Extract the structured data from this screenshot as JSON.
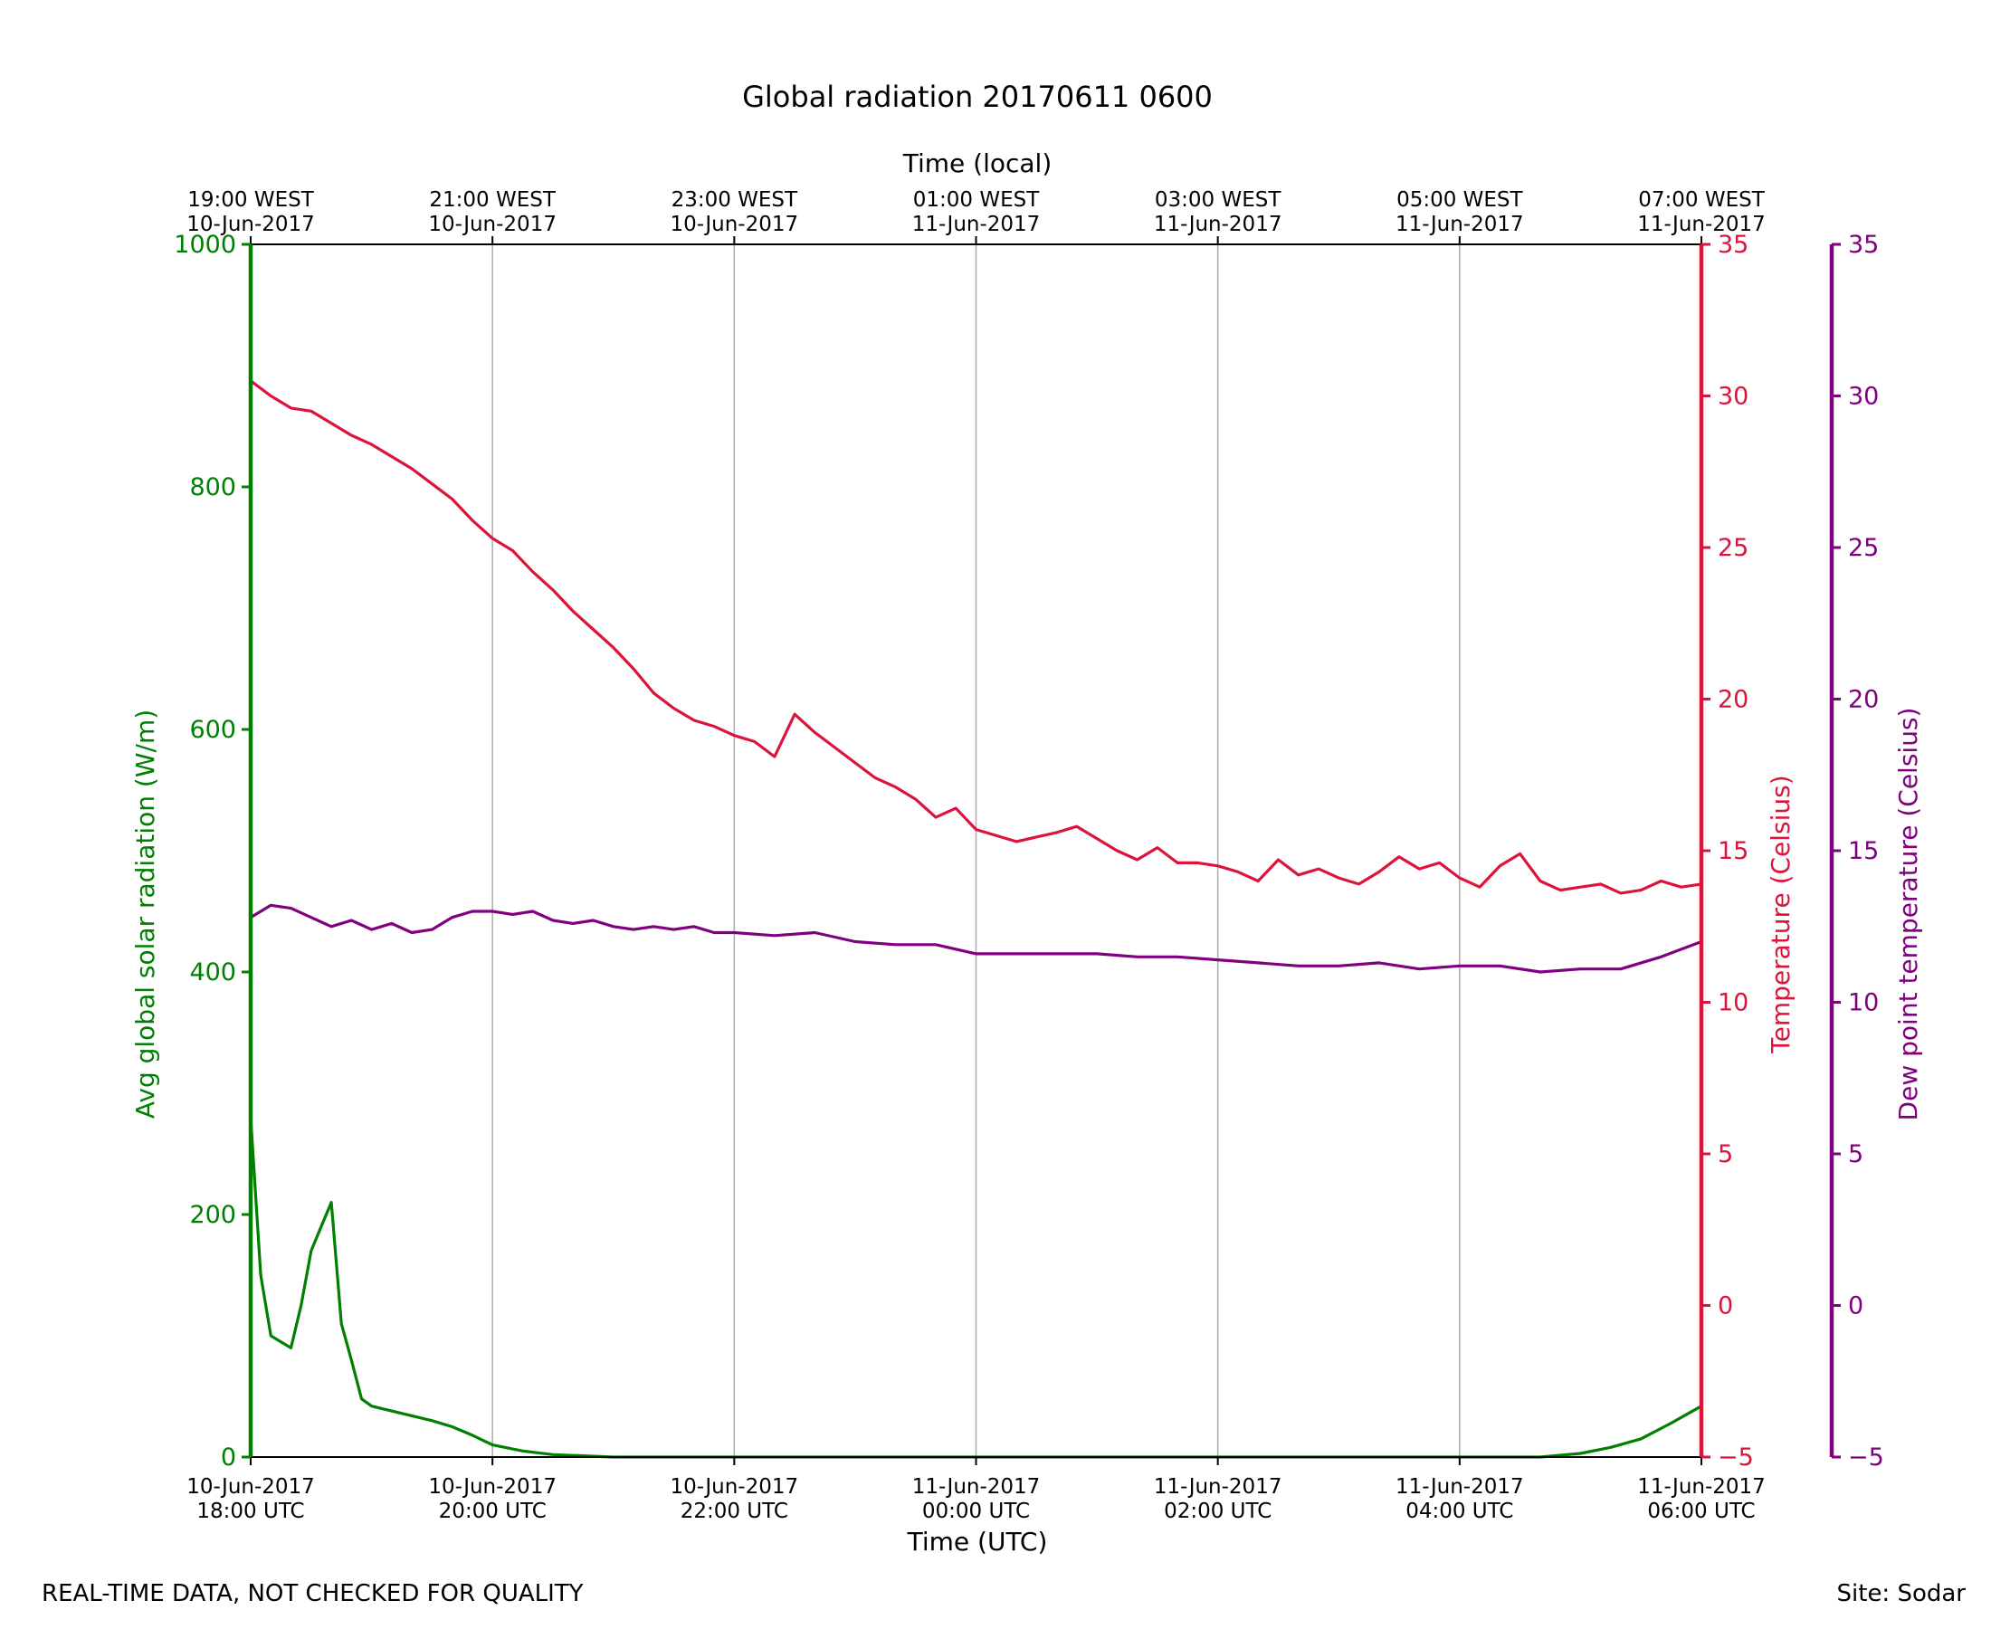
{
  "chart_data": {
    "type": "line",
    "title": "Global radiation 20170611 0600",
    "xlabel": "Time (UTC)",
    "x2label": "Time (local)",
    "x_range": [
      "2017-06-10T18:00Z",
      "2017-06-11T06:00Z"
    ],
    "x_ticks": [
      {
        "time": "2017-06-10T18:00Z",
        "utc_date": "10-Jun-2017",
        "utc_time": "18:00 UTC",
        "local_time": "19:00 WEST",
        "local_date": "10-Jun-2017"
      },
      {
        "time": "2017-06-10T20:00Z",
        "utc_date": "10-Jun-2017",
        "utc_time": "20:00 UTC",
        "local_time": "21:00 WEST",
        "local_date": "10-Jun-2017"
      },
      {
        "time": "2017-06-10T22:00Z",
        "utc_date": "10-Jun-2017",
        "utc_time": "22:00 UTC",
        "local_time": "23:00 WEST",
        "local_date": "10-Jun-2017"
      },
      {
        "time": "2017-06-11T00:00Z",
        "utc_date": "11-Jun-2017",
        "utc_time": "00:00 UTC",
        "local_time": "01:00 WEST",
        "local_date": "11-Jun-2017"
      },
      {
        "time": "2017-06-11T02:00Z",
        "utc_date": "11-Jun-2017",
        "utc_time": "02:00 UTC",
        "local_time": "03:00 WEST",
        "local_date": "11-Jun-2017"
      },
      {
        "time": "2017-06-11T04:00Z",
        "utc_date": "11-Jun-2017",
        "utc_time": "04:00 UTC",
        "local_time": "05:00 WEST",
        "local_date": "11-Jun-2017"
      },
      {
        "time": "2017-06-11T06:00Z",
        "utc_date": "11-Jun-2017",
        "utc_time": "06:00 UTC",
        "local_time": "07:00 WEST",
        "local_date": "11-Jun-2017"
      }
    ],
    "grid": "vertical",
    "axes": [
      {
        "id": "radiation",
        "label": "Avg global solar radiation (W/m)",
        "side": "left",
        "color": "#008000",
        "ylim": [
          0,
          1000
        ],
        "ticks": [
          0,
          200,
          400,
          600,
          800,
          1000
        ]
      },
      {
        "id": "temperature",
        "label": "Temperature (Celsius)",
        "side": "right",
        "color": "#dc143c",
        "ylim": [
          -5,
          35
        ],
        "ticks": [
          -5,
          0,
          5,
          10,
          15,
          20,
          25,
          30,
          35
        ]
      },
      {
        "id": "dewpoint",
        "label": "Dew point temperature (Celsius)",
        "side": "right-outer",
        "color": "#800080",
        "ylim": [
          -5,
          35
        ],
        "ticks": [
          -5,
          0,
          5,
          10,
          15,
          20,
          25,
          30,
          35
        ]
      }
    ],
    "series": [
      {
        "axis": "radiation",
        "color": "#008000",
        "x": [
          "2017-06-10T18:00Z",
          "2017-06-10T18:05Z",
          "2017-06-10T18:10Z",
          "2017-06-10T18:15Z",
          "2017-06-10T18:20Z",
          "2017-06-10T18:25Z",
          "2017-06-10T18:30Z",
          "2017-06-10T18:35Z",
          "2017-06-10T18:40Z",
          "2017-06-10T18:45Z",
          "2017-06-10T18:50Z",
          "2017-06-10T18:55Z",
          "2017-06-10T19:00Z",
          "2017-06-10T19:05Z",
          "2017-06-10T19:10Z",
          "2017-06-10T19:20Z",
          "2017-06-10T19:30Z",
          "2017-06-10T19:40Z",
          "2017-06-10T19:50Z",
          "2017-06-10T20:00Z",
          "2017-06-10T20:15Z",
          "2017-06-10T20:30Z",
          "2017-06-10T21:00Z",
          "2017-06-10T22:00Z",
          "2017-06-11T00:00Z",
          "2017-06-11T02:00Z",
          "2017-06-11T04:00Z",
          "2017-06-11T04:40Z",
          "2017-06-11T05:00Z",
          "2017-06-11T05:15Z",
          "2017-06-11T05:30Z",
          "2017-06-11T05:45Z",
          "2017-06-11T06:00Z"
        ],
        "values": [
          280,
          150,
          100,
          95,
          90,
          125,
          170,
          190,
          210,
          110,
          80,
          48,
          42,
          40,
          38,
          34,
          30,
          25,
          18,
          10,
          5,
          2,
          0,
          0,
          0,
          0,
          0,
          0,
          3,
          8,
          15,
          28,
          42
        ]
      },
      {
        "axis": "temperature",
        "color": "#dc143c",
        "x": [
          "2017-06-10T18:00Z",
          "2017-06-10T18:10Z",
          "2017-06-10T18:20Z",
          "2017-06-10T18:30Z",
          "2017-06-10T18:40Z",
          "2017-06-10T18:50Z",
          "2017-06-10T19:00Z",
          "2017-06-10T19:10Z",
          "2017-06-10T19:20Z",
          "2017-06-10T19:30Z",
          "2017-06-10T19:40Z",
          "2017-06-10T19:50Z",
          "2017-06-10T20:00Z",
          "2017-06-10T20:10Z",
          "2017-06-10T20:20Z",
          "2017-06-10T20:30Z",
          "2017-06-10T20:40Z",
          "2017-06-10T20:50Z",
          "2017-06-10T21:00Z",
          "2017-06-10T21:10Z",
          "2017-06-10T21:20Z",
          "2017-06-10T21:30Z",
          "2017-06-10T21:40Z",
          "2017-06-10T21:50Z",
          "2017-06-10T22:00Z",
          "2017-06-10T22:10Z",
          "2017-06-10T22:20Z",
          "2017-06-10T22:30Z",
          "2017-06-10T22:40Z",
          "2017-06-10T22:50Z",
          "2017-06-10T23:00Z",
          "2017-06-10T23:10Z",
          "2017-06-10T23:20Z",
          "2017-06-10T23:30Z",
          "2017-06-10T23:40Z",
          "2017-06-10T23:50Z",
          "2017-06-11T00:00Z",
          "2017-06-11T00:20Z",
          "2017-06-11T00:40Z",
          "2017-06-11T00:50Z",
          "2017-06-11T01:00Z",
          "2017-06-11T01:10Z",
          "2017-06-11T01:20Z",
          "2017-06-11T01:30Z",
          "2017-06-11T01:40Z",
          "2017-06-11T01:50Z",
          "2017-06-11T02:00Z",
          "2017-06-11T02:10Z",
          "2017-06-11T02:20Z",
          "2017-06-11T02:30Z",
          "2017-06-11T02:40Z",
          "2017-06-11T02:50Z",
          "2017-06-11T03:00Z",
          "2017-06-11T03:10Z",
          "2017-06-11T03:20Z",
          "2017-06-11T03:30Z",
          "2017-06-11T03:40Z",
          "2017-06-11T03:50Z",
          "2017-06-11T04:00Z",
          "2017-06-11T04:10Z",
          "2017-06-11T04:20Z",
          "2017-06-11T04:30Z",
          "2017-06-11T04:40Z",
          "2017-06-11T04:50Z",
          "2017-06-11T05:00Z",
          "2017-06-11T05:10Z",
          "2017-06-11T05:20Z",
          "2017-06-11T05:30Z",
          "2017-06-11T05:40Z",
          "2017-06-11T05:50Z",
          "2017-06-11T06:00Z"
        ],
        "values": [
          30.5,
          30,
          29.6,
          29.5,
          29.1,
          28.7,
          28.4,
          28,
          27.6,
          27.1,
          26.6,
          25.9,
          25.3,
          24.9,
          24.2,
          23.6,
          22.9,
          22.3,
          21.7,
          21.0,
          20.2,
          19.7,
          19.3,
          19.1,
          18.8,
          18.6,
          18.1,
          19.5,
          18.9,
          18.4,
          17.9,
          17.4,
          17.1,
          16.7,
          16.1,
          16.4,
          15.7,
          15.3,
          15.6,
          15.8,
          15.4,
          15.0,
          14.7,
          15.1,
          14.6,
          14.6,
          14.5,
          14.3,
          14.0,
          14.7,
          14.2,
          14.4,
          14.1,
          13.9,
          14.3,
          14.8,
          14.4,
          14.6,
          14.1,
          13.8,
          14.5,
          14.9,
          14.0,
          13.7,
          13.8,
          13.9,
          13.6,
          13.7,
          14.0,
          13.8,
          13.9
        ]
      },
      {
        "axis": "dewpoint",
        "color": "#800080",
        "x": [
          "2017-06-10T18:00Z",
          "2017-06-10T18:10Z",
          "2017-06-10T18:20Z",
          "2017-06-10T18:30Z",
          "2017-06-10T18:40Z",
          "2017-06-10T18:50Z",
          "2017-06-10T19:00Z",
          "2017-06-10T19:10Z",
          "2017-06-10T19:20Z",
          "2017-06-10T19:30Z",
          "2017-06-10T19:40Z",
          "2017-06-10T19:50Z",
          "2017-06-10T20:00Z",
          "2017-06-10T20:10Z",
          "2017-06-10T20:20Z",
          "2017-06-10T20:30Z",
          "2017-06-10T20:40Z",
          "2017-06-10T20:50Z",
          "2017-06-10T21:00Z",
          "2017-06-10T21:10Z",
          "2017-06-10T21:20Z",
          "2017-06-10T21:30Z",
          "2017-06-10T21:40Z",
          "2017-06-10T21:50Z",
          "2017-06-10T22:00Z",
          "2017-06-10T22:20Z",
          "2017-06-10T22:40Z",
          "2017-06-10T23:00Z",
          "2017-06-10T23:20Z",
          "2017-06-10T23:40Z",
          "2017-06-11T00:00Z",
          "2017-06-11T00:20Z",
          "2017-06-11T00:40Z",
          "2017-06-11T01:00Z",
          "2017-06-11T01:20Z",
          "2017-06-11T01:40Z",
          "2017-06-11T02:00Z",
          "2017-06-11T02:20Z",
          "2017-06-11T02:40Z",
          "2017-06-11T03:00Z",
          "2017-06-11T03:20Z",
          "2017-06-11T03:40Z",
          "2017-06-11T04:00Z",
          "2017-06-11T04:20Z",
          "2017-06-11T04:40Z",
          "2017-06-11T05:00Z",
          "2017-06-11T05:20Z",
          "2017-06-11T05:40Z",
          "2017-06-11T06:00Z"
        ],
        "values": [
          12.8,
          13.2,
          13.1,
          12.8,
          12.5,
          12.7,
          12.4,
          12.6,
          12.3,
          12.4,
          12.8,
          13.0,
          13.0,
          12.9,
          13.0,
          12.7,
          12.6,
          12.7,
          12.5,
          12.4,
          12.5,
          12.4,
          12.5,
          12.3,
          12.3,
          12.2,
          12.3,
          12.0,
          11.9,
          11.9,
          11.6,
          11.6,
          11.6,
          11.6,
          11.5,
          11.5,
          11.4,
          11.3,
          11.2,
          11.2,
          11.3,
          11.1,
          11.2,
          11.2,
          11.0,
          11.1,
          11.1,
          11.5,
          12.0
        ]
      }
    ]
  },
  "footer": {
    "note": "REAL-TIME DATA, NOT CHECKED FOR QUALITY",
    "site": "Site: Sodar"
  }
}
